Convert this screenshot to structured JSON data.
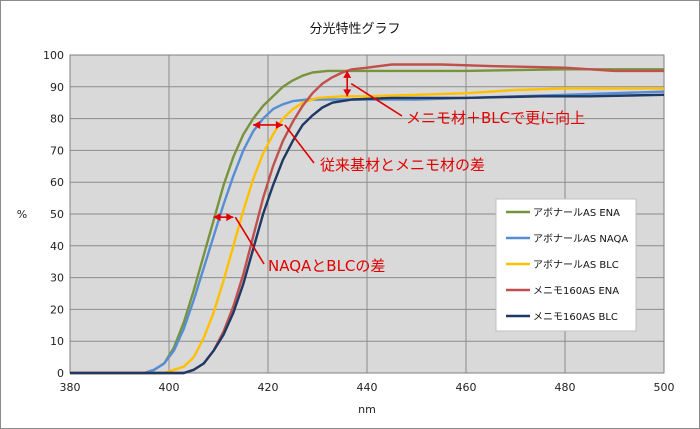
{
  "chart_data": {
    "type": "line",
    "title": "分光特性グラフ",
    "xlabel": "nm",
    "ylabel": "%",
    "xlim": [
      380,
      500
    ],
    "ylim": [
      0,
      100
    ],
    "xticks": [
      380,
      400,
      420,
      440,
      460,
      480,
      500
    ],
    "yticks": [
      0,
      10,
      20,
      30,
      40,
      50,
      60,
      70,
      80,
      90,
      100
    ],
    "grid": true,
    "legend_position": "right",
    "series": [
      {
        "name": "アボナールAS ENA",
        "color": "#77933c",
        "points": [
          [
            380,
            0
          ],
          [
            395,
            0
          ],
          [
            397,
            1
          ],
          [
            399,
            3
          ],
          [
            401,
            8
          ],
          [
            403,
            16
          ],
          [
            405,
            26
          ],
          [
            407,
            37
          ],
          [
            409,
            48
          ],
          [
            411,
            59
          ],
          [
            413,
            68
          ],
          [
            415,
            75
          ],
          [
            417,
            80
          ],
          [
            419,
            84
          ],
          [
            421,
            87
          ],
          [
            423,
            90
          ],
          [
            425,
            92
          ],
          [
            427,
            93.5
          ],
          [
            429,
            94.5
          ],
          [
            432,
            95
          ],
          [
            440,
            95
          ],
          [
            460,
            95
          ],
          [
            480,
            95.5
          ],
          [
            500,
            95.5
          ]
        ]
      },
      {
        "name": "アボナールAS NAQA",
        "color": "#558ed5",
        "points": [
          [
            380,
            0
          ],
          [
            395,
            0
          ],
          [
            397,
            1
          ],
          [
            399,
            3
          ],
          [
            401,
            7
          ],
          [
            403,
            14
          ],
          [
            405,
            23
          ],
          [
            407,
            33
          ],
          [
            409,
            43
          ],
          [
            411,
            53
          ],
          [
            413,
            62
          ],
          [
            415,
            70
          ],
          [
            417,
            76
          ],
          [
            419,
            80
          ],
          [
            421,
            83
          ],
          [
            423,
            84.5
          ],
          [
            425,
            85.5
          ],
          [
            428,
            86
          ],
          [
            440,
            86
          ],
          [
            450,
            86
          ],
          [
            460,
            86.5
          ],
          [
            480,
            87.5
          ],
          [
            490,
            88
          ],
          [
            500,
            88.5
          ]
        ]
      },
      {
        "name": "アボナールAS BLC",
        "color": "#ffc000",
        "points": [
          [
            380,
            0
          ],
          [
            399,
            0
          ],
          [
            401,
            1
          ],
          [
            403,
            2
          ],
          [
            405,
            5
          ],
          [
            407,
            11
          ],
          [
            409,
            19
          ],
          [
            411,
            29
          ],
          [
            413,
            40
          ],
          [
            415,
            51
          ],
          [
            417,
            61
          ],
          [
            419,
            69
          ],
          [
            421,
            75
          ],
          [
            423,
            80
          ],
          [
            425,
            83
          ],
          [
            427,
            85
          ],
          [
            430,
            86.5
          ],
          [
            435,
            87
          ],
          [
            440,
            87
          ],
          [
            450,
            87.5
          ],
          [
            460,
            88
          ],
          [
            470,
            89
          ],
          [
            480,
            89.5
          ],
          [
            500,
            89.5
          ]
        ]
      },
      {
        "name": "メニモ160AS ENA",
        "color": "#c0504d",
        "points": [
          [
            380,
            0
          ],
          [
            403,
            0
          ],
          [
            405,
            1
          ],
          [
            407,
            3
          ],
          [
            409,
            7
          ],
          [
            411,
            13
          ],
          [
            413,
            21
          ],
          [
            415,
            31
          ],
          [
            417,
            43
          ],
          [
            419,
            55
          ],
          [
            421,
            65
          ],
          [
            423,
            73
          ],
          [
            425,
            79
          ],
          [
            427,
            84
          ],
          [
            429,
            88
          ],
          [
            431,
            91
          ],
          [
            433,
            93
          ],
          [
            435,
            94.5
          ],
          [
            437,
            95.5
          ],
          [
            440,
            96
          ],
          [
            445,
            97
          ],
          [
            455,
            97
          ],
          [
            465,
            96.5
          ],
          [
            480,
            96
          ],
          [
            490,
            95
          ],
          [
            500,
            95
          ]
        ]
      },
      {
        "name": "メニモ160AS BLC",
        "color": "#1f3864",
        "points": [
          [
            380,
            0
          ],
          [
            403,
            0
          ],
          [
            405,
            1
          ],
          [
            407,
            3
          ],
          [
            409,
            7
          ],
          [
            411,
            12
          ],
          [
            413,
            19
          ],
          [
            415,
            28
          ],
          [
            417,
            39
          ],
          [
            419,
            50
          ],
          [
            421,
            59
          ],
          [
            423,
            67
          ],
          [
            425,
            73
          ],
          [
            427,
            78
          ],
          [
            429,
            81
          ],
          [
            431,
            83.5
          ],
          [
            433,
            85
          ],
          [
            435,
            85.5
          ],
          [
            437,
            86
          ],
          [
            445,
            86.5
          ],
          [
            460,
            86.5
          ],
          [
            475,
            87
          ],
          [
            485,
            87
          ],
          [
            500,
            87.5
          ]
        ]
      }
    ],
    "annotations": [
      {
        "text": "メニモ材＋BLCで更に向上",
        "x": 436,
        "y_from": 87,
        "y_to": 95
      },
      {
        "text": "従来基材とメニモ材の差",
        "x_from": 417,
        "x_to": 423,
        "y": 78
      },
      {
        "text": "NAQAとBLCの差",
        "x_from": 409,
        "x_to": 413,
        "y": 49
      }
    ]
  }
}
